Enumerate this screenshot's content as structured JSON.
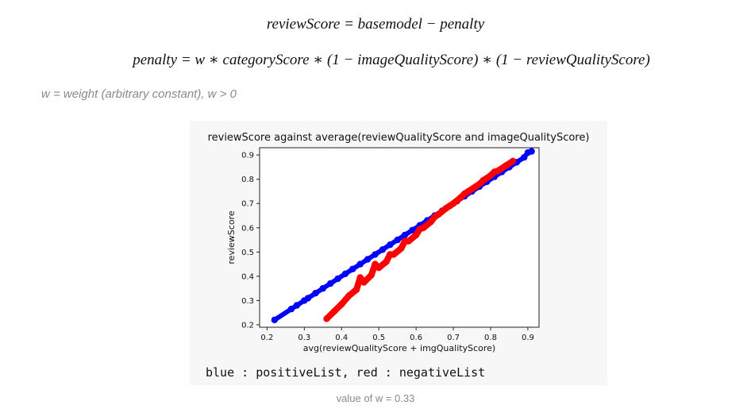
{
  "formulas": {
    "line1": "reviewScore = basemodel − penalty",
    "line2": "penalty = w ∗ categoryScore ∗ (1 − imageQualityScore) ∗ (1 − reviewQualityScore)"
  },
  "note": "w = weight (arbitrary constant), w > 0",
  "legend_text": "blue : positiveList, red : negativeList",
  "caption": "value of w = 0.33",
  "colors": {
    "positive": "#0000ff",
    "negative": "#ff0000"
  },
  "chart_data": {
    "type": "scatter",
    "title": "reviewScore against average(reviewQualityScore and imageQualityScore)",
    "xlabel": "avg(reviewQualityScore + imgQualityScore)",
    "ylabel": "reviewScore",
    "xlim": [
      0.18,
      0.93
    ],
    "ylim": [
      0.19,
      0.93
    ],
    "xticks": [
      "0.2",
      "0.3",
      "0.4",
      "0.5",
      "0.6",
      "0.7",
      "0.8",
      "0.9"
    ],
    "yticks": [
      "0.2",
      "0.3",
      "0.4",
      "0.5",
      "0.6",
      "0.7",
      "0.8",
      "0.9"
    ],
    "grid": false,
    "series": [
      {
        "color": "#0000ff",
        "points": [
          [
            0.22,
            0.22
          ],
          [
            0.265,
            0.265
          ],
          [
            0.28,
            0.28
          ],
          [
            0.3,
            0.3
          ],
          [
            0.31,
            0.31
          ],
          [
            0.33,
            0.33
          ],
          [
            0.35,
            0.35
          ],
          [
            0.37,
            0.37
          ],
          [
            0.39,
            0.39
          ],
          [
            0.41,
            0.41
          ],
          [
            0.43,
            0.43
          ],
          [
            0.45,
            0.45
          ],
          [
            0.47,
            0.47
          ],
          [
            0.49,
            0.49
          ],
          [
            0.51,
            0.51
          ],
          [
            0.53,
            0.53
          ],
          [
            0.55,
            0.55
          ],
          [
            0.57,
            0.57
          ],
          [
            0.59,
            0.59
          ],
          [
            0.61,
            0.61
          ],
          [
            0.63,
            0.63
          ],
          [
            0.65,
            0.65
          ],
          [
            0.67,
            0.67
          ],
          [
            0.69,
            0.69
          ],
          [
            0.71,
            0.71
          ],
          [
            0.73,
            0.73
          ],
          [
            0.75,
            0.75
          ],
          [
            0.77,
            0.77
          ],
          [
            0.79,
            0.79
          ],
          [
            0.81,
            0.81
          ],
          [
            0.83,
            0.83
          ],
          [
            0.85,
            0.85
          ],
          [
            0.87,
            0.87
          ],
          [
            0.89,
            0.89
          ],
          [
            0.9,
            0.91
          ],
          [
            0.91,
            0.915
          ]
        ]
      },
      {
        "color": "#ff0000",
        "points": [
          [
            0.36,
            0.225
          ],
          [
            0.38,
            0.255
          ],
          [
            0.4,
            0.285
          ],
          [
            0.42,
            0.32
          ],
          [
            0.44,
            0.345
          ],
          [
            0.46,
            0.375
          ],
          [
            0.48,
            0.405
          ],
          [
            0.5,
            0.435
          ],
          [
            0.52,
            0.46
          ],
          [
            0.54,
            0.49
          ],
          [
            0.56,
            0.515
          ],
          [
            0.58,
            0.545
          ],
          [
            0.6,
            0.57
          ],
          [
            0.62,
            0.6
          ],
          [
            0.64,
            0.625
          ],
          [
            0.66,
            0.655
          ],
          [
            0.68,
            0.68
          ],
          [
            0.7,
            0.7
          ],
          [
            0.72,
            0.725
          ],
          [
            0.74,
            0.75
          ],
          [
            0.76,
            0.77
          ],
          [
            0.78,
            0.795
          ],
          [
            0.8,
            0.815
          ],
          [
            0.82,
            0.835
          ],
          [
            0.84,
            0.855
          ],
          [
            0.86,
            0.875
          ],
          [
            0.45,
            0.395
          ],
          [
            0.49,
            0.45
          ],
          [
            0.53,
            0.49
          ],
          [
            0.57,
            0.545
          ],
          [
            0.61,
            0.595
          ],
          [
            0.65,
            0.645
          ],
          [
            0.69,
            0.69
          ],
          [
            0.73,
            0.74
          ],
          [
            0.77,
            0.78
          ],
          [
            0.81,
            0.83
          ]
        ]
      }
    ]
  }
}
